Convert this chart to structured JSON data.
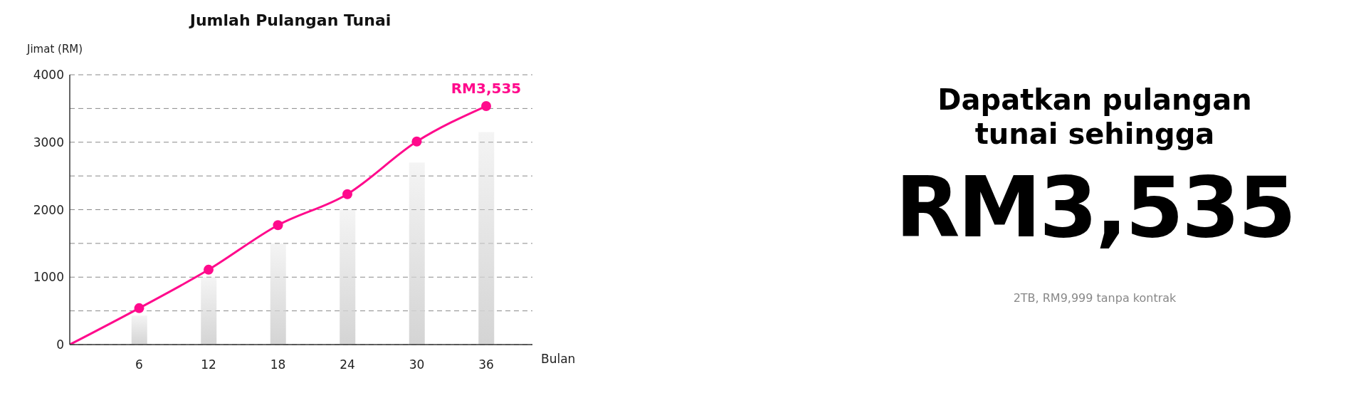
{
  "chart_data": {
    "type": "line",
    "title": "Jumlah Pulangan Tunai",
    "xlabel": "Bulan",
    "ylabel": "Jimat (RM)",
    "series": [
      {
        "type": "bar",
        "color": "#d4d4d4",
        "x": [
          6,
          12,
          18,
          24,
          30,
          36
        ],
        "values": [
          430,
          1000,
          1500,
          2000,
          2700,
          3150
        ]
      },
      {
        "color": "#ff0a8c",
        "x": [
          0,
          6,
          12,
          18,
          24,
          30,
          36
        ],
        "values": [
          0,
          540,
          1110,
          1770,
          2230,
          3010,
          3535
        ]
      }
    ],
    "xlim": [
      0,
      40
    ],
    "xticks": [
      6,
      12,
      18,
      24,
      30,
      36
    ],
    "ylim": [
      0,
      4000
    ],
    "yticks": [
      0,
      {
        "value": 500,
        "label": null
      },
      1000,
      {
        "value": 1500,
        "label": null
      },
      2000,
      {
        "value": 2500,
        "label": null
      },
      3000,
      {
        "value": 3500,
        "label": null
      },
      4000
    ],
    "grid": "y",
    "marker": "circle",
    "line_style": "solid",
    "legend": false,
    "annotations": [
      {
        "text": "RM3,535",
        "x": 36,
        "y": 3535
      },
      "Dapatkan pulangan tunai sehingga",
      "RM3,535",
      "2TB, RM9,999 tanpa kontrak"
    ]
  }
}
